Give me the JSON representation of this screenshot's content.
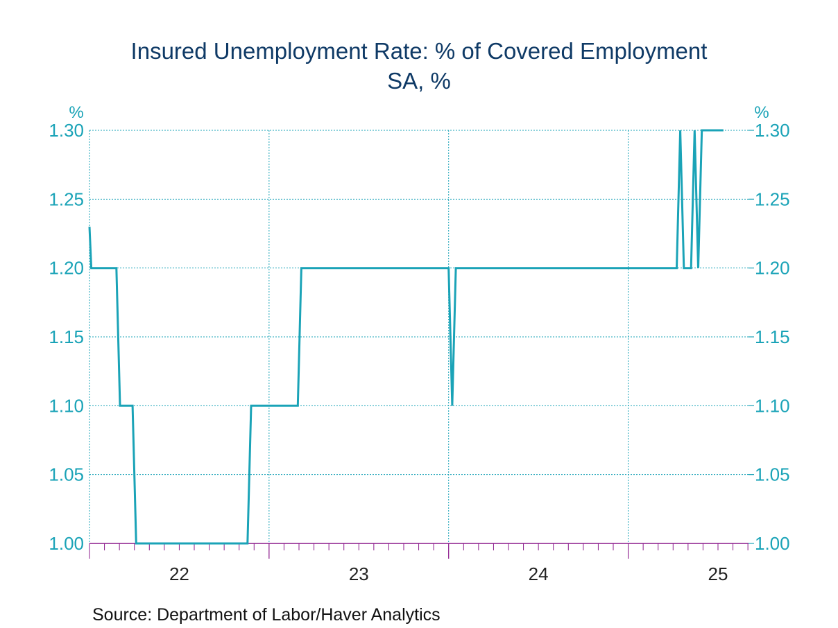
{
  "chart_data": {
    "type": "line",
    "title": "Insured Unemployment Rate: % of Covered Employment",
    "subtitle": "SA, %",
    "y_unit_left": "%",
    "y_unit_right": "%",
    "ylim": [
      1.0,
      1.3
    ],
    "yticks": [
      "1.00",
      "1.05",
      "1.10",
      "1.15",
      "1.20",
      "1.25",
      "1.30"
    ],
    "xlim": [
      2021.5,
      2025.17
    ],
    "x_labels": [
      {
        "label": "22",
        "x": 2022.0
      },
      {
        "label": "23",
        "x": 2023.0
      },
      {
        "label": "24",
        "x": 2024.0
      },
      {
        "label": "25",
        "x": 2025.0
      }
    ],
    "year_boundaries": [
      2022.5,
      2023.5,
      2024.5
    ],
    "grid": true,
    "series": [
      {
        "color": "#1aa3b7",
        "points": [
          [
            2021.5,
            1.23
          ],
          [
            2021.51,
            1.2
          ],
          [
            2021.65,
            1.2
          ],
          [
            2021.67,
            1.1
          ],
          [
            2021.74,
            1.1
          ],
          [
            2021.76,
            1.0
          ],
          [
            2022.38,
            1.0
          ],
          [
            2022.4,
            1.1
          ],
          [
            2022.66,
            1.1
          ],
          [
            2022.68,
            1.2
          ],
          [
            2023.5,
            1.2
          ],
          [
            2023.52,
            1.1
          ],
          [
            2023.54,
            1.2
          ],
          [
            2024.77,
            1.2
          ],
          [
            2024.79,
            1.3
          ],
          [
            2024.81,
            1.2
          ],
          [
            2024.85,
            1.2
          ],
          [
            2024.87,
            1.3
          ],
          [
            2024.89,
            1.2
          ],
          [
            2024.91,
            1.3
          ],
          [
            2025.03,
            1.3
          ]
        ]
      }
    ]
  },
  "source": "Source:  Department of Labor/Haver Analytics"
}
